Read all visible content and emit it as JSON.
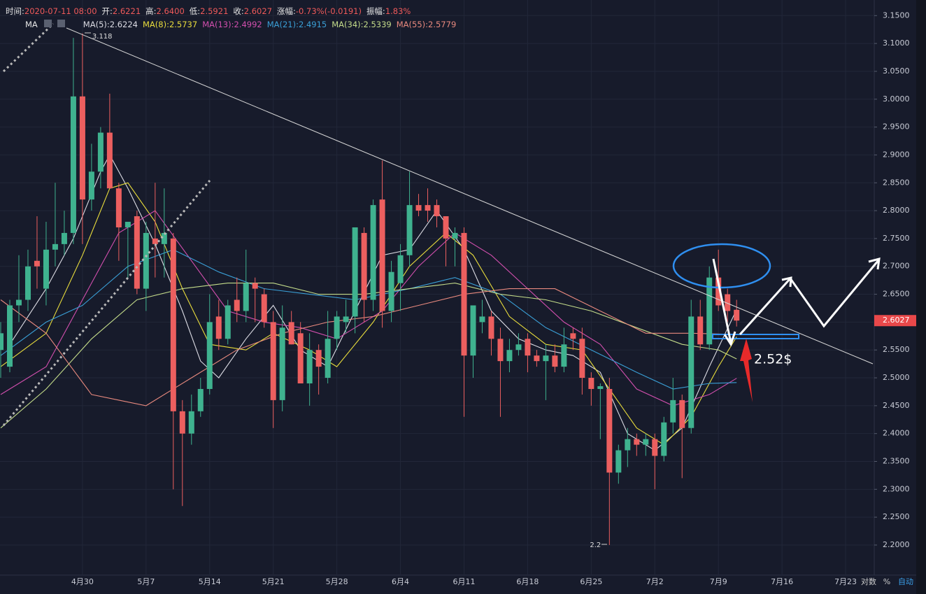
{
  "chart_data": {
    "type": "candlestick",
    "info": [
      {
        "label": "时间:",
        "value": "2020-07-11 08:00"
      },
      {
        "label": "开:",
        "value": "2.6221"
      },
      {
        "label": "高:",
        "value": "2.6400"
      },
      {
        "label": "低:",
        "value": "2.5921"
      },
      {
        "label": "收:",
        "value": "2.6027"
      },
      {
        "label": "涨幅:",
        "value": "-0.73%(-0.0191)"
      },
      {
        "label": "振幅:",
        "value": "1.83%"
      }
    ],
    "indicator": "MA",
    "categories": [
      "4月21",
      "4月22",
      "4月23",
      "4月24",
      "4月25",
      "4月26",
      "4月27",
      "4月28",
      "4月29",
      "4月30",
      "5月1",
      "5月2",
      "5月3",
      "5月4",
      "5月5",
      "5月6",
      "5月7",
      "5月8",
      "5月9",
      "5月10",
      "5月11",
      "5月12",
      "5月13",
      "5月14",
      "5月15",
      "5月16",
      "5月17",
      "5月18",
      "5月19",
      "5月20",
      "5月21",
      "5月22",
      "5月23",
      "5月24",
      "5月25",
      "5月26",
      "5月27",
      "5月28",
      "5月29",
      "5月30",
      "5月31",
      "6月1",
      "6月2",
      "6月3",
      "6月4",
      "6月5",
      "6月6",
      "6月7",
      "6月8",
      "6月9",
      "6月10",
      "6月11",
      "6月12",
      "6月13",
      "6月14",
      "6月15",
      "6月16",
      "6月17",
      "6月18",
      "6月19",
      "6月20",
      "6月21",
      "6月22",
      "6月23",
      "6月24",
      "6月25",
      "6月26",
      "6月27",
      "6月28",
      "6月29",
      "6月30",
      "7月1",
      "7月2",
      "7月3",
      "7月4",
      "7月5",
      "7月6",
      "7月7",
      "7月8",
      "7月9",
      "7月10",
      "7月11"
    ],
    "open": [
      2.55,
      2.52,
      2.63,
      2.64,
      2.71,
      2.66,
      2.73,
      2.74,
      2.76,
      3.005,
      2.82,
      2.87,
      2.94,
      2.84,
      2.77,
      2.79,
      2.66,
      2.75,
      2.74,
      2.75,
      2.44,
      2.4,
      2.44,
      2.48,
      2.61,
      2.57,
      2.64,
      2.62,
      2.67,
      2.65,
      2.6,
      2.46,
      2.6,
      2.58,
      2.49,
      2.55,
      2.5,
      2.57,
      2.6,
      2.61,
      2.76,
      2.64,
      2.82,
      2.62,
      2.67,
      2.72,
      2.81,
      2.81,
      2.81,
      2.79,
      2.75,
      2.76,
      2.54,
      2.6,
      2.61,
      2.57,
      2.53,
      2.55,
      2.57,
      2.54,
      2.53,
      2.54,
      2.52,
      2.58,
      2.57,
      2.5,
      2.48,
      2.48,
      2.33,
      2.37,
      2.39,
      2.38,
      2.39,
      2.36,
      2.42,
      2.46,
      2.41,
      2.61,
      2.56,
      2.68,
      2.65,
      2.6221
    ],
    "high": [
      2.6,
      2.64,
      2.72,
      2.73,
      2.79,
      2.78,
      2.85,
      2.8,
      3.11,
      3.118,
      2.92,
      2.95,
      3.01,
      2.85,
      2.78,
      2.8,
      2.78,
      2.85,
      2.84,
      2.76,
      2.46,
      2.47,
      2.5,
      2.65,
      2.64,
      2.64,
      2.68,
      2.73,
      2.68,
      2.66,
      2.62,
      2.63,
      2.62,
      2.6,
      2.58,
      2.56,
      2.62,
      2.62,
      2.64,
      2.77,
      2.77,
      2.82,
      2.89,
      2.71,
      2.74,
      2.87,
      2.83,
      2.84,
      2.82,
      2.79,
      2.77,
      2.77,
      2.63,
      2.64,
      2.62,
      2.59,
      2.57,
      2.58,
      2.58,
      2.55,
      2.56,
      2.56,
      2.59,
      2.59,
      2.59,
      2.51,
      2.49,
      2.5,
      2.38,
      2.41,
      2.4,
      2.4,
      2.4,
      2.43,
      2.5,
      2.47,
      2.64,
      2.64,
      2.7,
      2.73,
      2.66,
      2.64
    ],
    "low": [
      2.5,
      2.51,
      2.6,
      2.62,
      2.66,
      2.63,
      2.7,
      2.72,
      2.74,
      2.74,
      2.8,
      2.84,
      2.84,
      2.71,
      2.68,
      2.65,
      2.62,
      2.68,
      2.68,
      2.3,
      2.27,
      2.38,
      2.43,
      2.47,
      2.55,
      2.56,
      2.6,
      2.6,
      2.6,
      2.59,
      2.41,
      2.44,
      2.56,
      2.49,
      2.45,
      2.47,
      2.49,
      2.55,
      2.58,
      2.58,
      2.6,
      2.62,
      2.59,
      2.6,
      2.62,
      2.7,
      2.79,
      2.78,
      2.77,
      2.7,
      2.7,
      2.43,
      2.5,
      2.58,
      2.54,
      2.43,
      2.51,
      2.54,
      2.51,
      2.52,
      2.46,
      2.51,
      2.51,
      2.55,
      2.47,
      2.45,
      2.39,
      2.2,
      2.31,
      2.34,
      2.36,
      2.36,
      2.3,
      2.35,
      2.4,
      2.32,
      2.4,
      2.55,
      2.55,
      2.62,
      2.6,
      2.5921
    ],
    "close": [
      2.58,
      2.63,
      2.64,
      2.7,
      2.7,
      2.73,
      2.74,
      2.76,
      3.005,
      2.82,
      2.87,
      2.94,
      2.84,
      2.77,
      2.78,
      2.66,
      2.76,
      2.74,
      2.76,
      2.44,
      2.4,
      2.44,
      2.48,
      2.6,
      2.57,
      2.63,
      2.62,
      2.67,
      2.66,
      2.6,
      2.46,
      2.59,
      2.56,
      2.49,
      2.55,
      2.52,
      2.57,
      2.61,
      2.61,
      2.77,
      2.64,
      2.81,
      2.62,
      2.69,
      2.72,
      2.81,
      2.8,
      2.8,
      2.79,
      2.75,
      2.76,
      2.54,
      2.63,
      2.61,
      2.57,
      2.53,
      2.55,
      2.56,
      2.54,
      2.53,
      2.54,
      2.52,
      2.56,
      2.57,
      2.5,
      2.48,
      2.485,
      2.33,
      2.37,
      2.39,
      2.38,
      2.39,
      2.36,
      2.42,
      2.46,
      2.41,
      2.61,
      2.56,
      2.68,
      2.63,
      2.62,
      2.6027
    ],
    "up_color": "#3fb28f",
    "down_color": "#ec5f5f",
    "series": [
      {
        "name": "MA(5)",
        "label": "MA(5):2.6224",
        "color": "#dcdce4",
        "x": [
          "4月22",
          "4月26",
          "4月29",
          "5月2",
          "5月3",
          "5月5",
          "5月8",
          "5月11",
          "5月13",
          "5月15",
          "5月18",
          "5月21",
          "5月24",
          "5月27",
          "5月30",
          "6月2",
          "6月5",
          "6月8",
          "6月11",
          "6月14",
          "6月17",
          "6月20",
          "6月23",
          "6月26",
          "6月29",
          "7月2",
          "7月5",
          "7月8",
          "7月11"
        ],
        "values": [
          2.56,
          2.66,
          2.75,
          2.87,
          2.9,
          2.84,
          2.74,
          2.62,
          2.53,
          2.5,
          2.57,
          2.63,
          2.55,
          2.52,
          2.62,
          2.72,
          2.73,
          2.8,
          2.73,
          2.62,
          2.57,
          2.55,
          2.54,
          2.51,
          2.4,
          2.37,
          2.41,
          2.52,
          2.6224
        ]
      },
      {
        "name": "MA(8)",
        "label": "MA(8):2.5737",
        "color": "#e8dc3c",
        "x": [
          "4月21",
          "4月26",
          "4月30",
          "5月3",
          "5月5",
          "5月8",
          "5月11",
          "5月14",
          "5月18",
          "5月21",
          "5月25",
          "5月28",
          "6月1",
          "6月5",
          "6月9",
          "6月12",
          "6月16",
          "6月20",
          "6月24",
          "6月27",
          "6月30",
          "7月3",
          "7月6",
          "7月9",
          "7月11"
        ],
        "values": [
          2.52,
          2.58,
          2.72,
          2.84,
          2.85,
          2.78,
          2.66,
          2.56,
          2.55,
          2.58,
          2.55,
          2.52,
          2.6,
          2.7,
          2.76,
          2.72,
          2.61,
          2.56,
          2.55,
          2.48,
          2.41,
          2.38,
          2.43,
          2.52,
          2.5737
        ]
      },
      {
        "name": "MA(13)",
        "label": "MA(13):2.4992",
        "color": "#d24fae",
        "x": [
          "4月21",
          "4月26",
          "4月30",
          "5月4",
          "5月8",
          "5月12",
          "5月16",
          "5月20",
          "5月24",
          "5月28",
          "6月2",
          "6月6",
          "6月10",
          "6月14",
          "6月18",
          "6月22",
          "6月26",
          "6月30",
          "7月4",
          "7月8",
          "7月11"
        ],
        "values": [
          2.47,
          2.52,
          2.64,
          2.76,
          2.8,
          2.71,
          2.62,
          2.6,
          2.59,
          2.57,
          2.62,
          2.7,
          2.76,
          2.72,
          2.66,
          2.6,
          2.56,
          2.48,
          2.45,
          2.47,
          2.4992
        ]
      },
      {
        "name": "MA(21)",
        "label": "MA(21):2.4915",
        "color": "#3a9fd6",
        "x": [
          "4月21",
          "4月26",
          "4月30",
          "5月5",
          "5月10",
          "5月15",
          "5月20",
          "5月25",
          "5月30",
          "6月5",
          "6月10",
          "6月15",
          "6月20",
          "6月25",
          "6月30",
          "7月4",
          "7月8",
          "7月11"
        ],
        "values": [
          2.54,
          2.6,
          2.63,
          2.7,
          2.73,
          2.69,
          2.66,
          2.65,
          2.64,
          2.66,
          2.68,
          2.65,
          2.59,
          2.55,
          2.51,
          2.48,
          2.49,
          2.4915
        ]
      },
      {
        "name": "MA(34)",
        "label": "MA(34):2.5339",
        "color": "#c4dc8a",
        "x": [
          "4月21",
          "4月26",
          "5月1",
          "5月6",
          "5月11",
          "5月16",
          "5月21",
          "5月26",
          "5月31",
          "6月5",
          "6月10",
          "6月15",
          "6月20",
          "6月25",
          "6月30",
          "7月5",
          "7月9",
          "7月11"
        ],
        "values": [
          2.41,
          2.48,
          2.57,
          2.64,
          2.66,
          2.67,
          2.67,
          2.65,
          2.65,
          2.66,
          2.67,
          2.65,
          2.64,
          2.62,
          2.59,
          2.56,
          2.55,
          2.5339
        ]
      },
      {
        "name": "MA(55)",
        "label": "MA(55):2.5779",
        "color": "#e8897e",
        "x": [
          "4月21",
          "4月26",
          "5月1",
          "5月4",
          "5月7",
          "5月12",
          "5月17",
          "5月22",
          "5月27",
          "6月1",
          "6月6",
          "6月11",
          "6月16",
          "6月21",
          "6月26",
          "7月1",
          "7月6",
          "7月11"
        ],
        "values": [
          2.64,
          2.58,
          2.47,
          2.46,
          2.45,
          2.5,
          2.55,
          2.58,
          2.6,
          2.61,
          2.63,
          2.65,
          2.66,
          2.66,
          2.62,
          2.58,
          2.58,
          2.5779
        ]
      }
    ],
    "ylim": [
      2.146,
      3.178
    ],
    "yticks": [
      {
        "value": 3.15,
        "label": "3.1500"
      },
      {
        "value": 3.1,
        "label": "3.1000"
      },
      {
        "value": 3.05,
        "label": "3.0500"
      },
      {
        "value": 3.0,
        "label": "3.0000"
      },
      {
        "value": 2.95,
        "label": "2.9500"
      },
      {
        "value": 2.9,
        "label": "2.9000"
      },
      {
        "value": 2.85,
        "label": "2.8500"
      },
      {
        "value": 2.8,
        "label": "2.8000"
      },
      {
        "value": 2.75,
        "label": "2.7500"
      },
      {
        "value": 2.7,
        "label": "2.7000"
      },
      {
        "value": 2.65,
        "label": "2.6500"
      },
      {
        "value": 2.6,
        "label": "2.6000"
      },
      {
        "value": 2.55,
        "label": "2.5500"
      },
      {
        "value": 2.5,
        "label": "2.5000"
      },
      {
        "value": 2.45,
        "label": "2.4500"
      },
      {
        "value": 2.4,
        "label": "2.4000"
      },
      {
        "value": 2.35,
        "label": "2.3500"
      },
      {
        "value": 2.3,
        "label": "2.3000"
      },
      {
        "value": 2.25,
        "label": "2.2500"
      },
      {
        "value": 2.2,
        "label": "2.2000"
      }
    ],
    "xticks": [
      "4月30",
      "5月7",
      "5月14",
      "5月21",
      "5月28",
      "6月4",
      "6月11",
      "6月18",
      "6月25",
      "7月2",
      "7月9",
      "7月16",
      "7月23"
    ],
    "last_price": {
      "value": 2.6027,
      "label": "2.6027",
      "color": "#e9484a"
    },
    "high_label": {
      "value": 3.118,
      "label": "3.118",
      "at": "4月30"
    },
    "low_label": {
      "value": 2.2,
      "label": "2.2",
      "at": "6月27"
    },
    "annotation": {
      "value": 2.52,
      "label": "2.52$"
    },
    "axis_buttons": [
      "对数",
      "%",
      "自动"
    ],
    "grid": true
  }
}
